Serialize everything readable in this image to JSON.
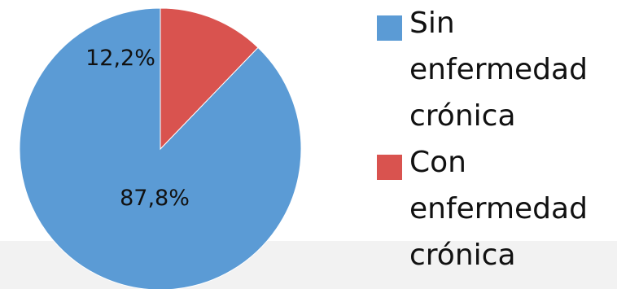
{
  "chart_data": {
    "type": "pie",
    "slices": [
      {
        "label": "Sin enfermedad crónica",
        "value": 87.8,
        "display": "87,8%",
        "color": "#5b9bd5"
      },
      {
        "label": "Con enfermedad crónica",
        "value": 12.2,
        "display": "12,2%",
        "color": "#d9534f"
      }
    ],
    "start_angle_deg": 0,
    "direction": "counterclockwise",
    "legend_position": "right"
  }
}
